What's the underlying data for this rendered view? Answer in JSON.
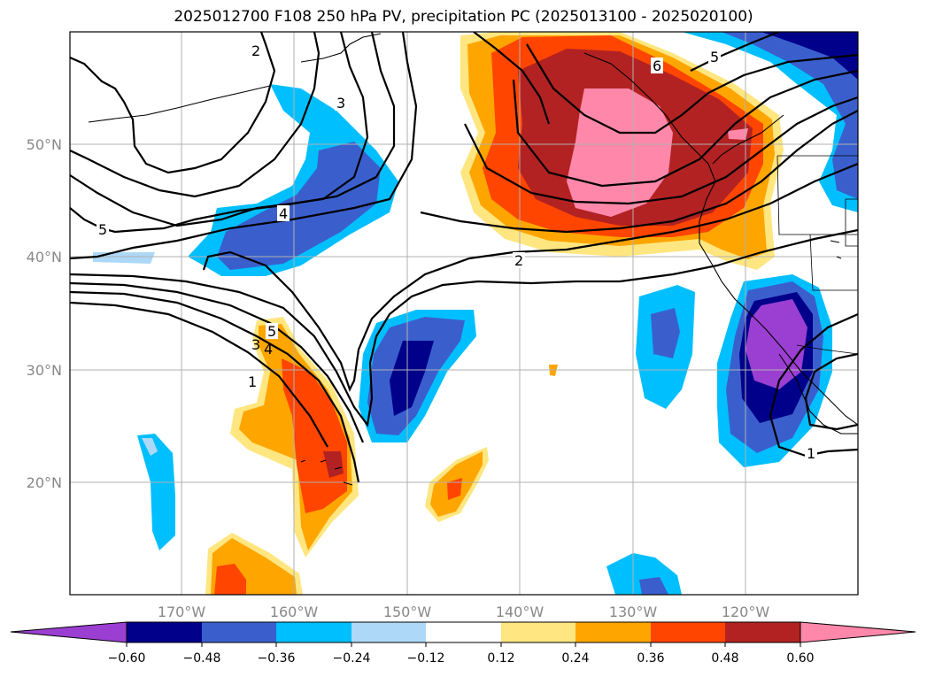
{
  "title": "2025012700 F108 250 hPa PV, precipitation PC (2025013100 - 2025020100)",
  "lat_labels": [
    "50°N",
    "40°N",
    "30°N",
    "20°N"
  ],
  "lon_labels": [
    "170°W",
    "160°W",
    "150°W",
    "140°W",
    "130°W",
    "120°W"
  ],
  "contour_labels": [
    "2",
    "3",
    "4",
    "5",
    "2",
    "6",
    "5",
    "5",
    "3",
    "4",
    "1",
    "1"
  ],
  "colorbar": {
    "ticks": [
      "−0.60",
      "−0.48",
      "−0.36",
      "−0.24",
      "−0.12",
      "0.12",
      "0.24",
      "0.36",
      "0.48",
      "0.60"
    ],
    "colors": [
      "#9b3fd2",
      "#00008b",
      "#3a5fcd",
      "#00bfff",
      "#add8f7",
      "#ffffff",
      "#ffe680",
      "#ffa500",
      "#ff4500",
      "#b22222",
      "#ff88aa"
    ]
  },
  "palette": {
    "purple": "#9b3fd2",
    "navy": "#00008b",
    "blue": "#3a5fcd",
    "sky": "#00bfff",
    "lightblue": "#add8f7",
    "yellow": "#ffe680",
    "orange": "#ffa500",
    "redorange": "#ff4500",
    "firebrick": "#b22222",
    "pink": "#ff88aa"
  }
}
